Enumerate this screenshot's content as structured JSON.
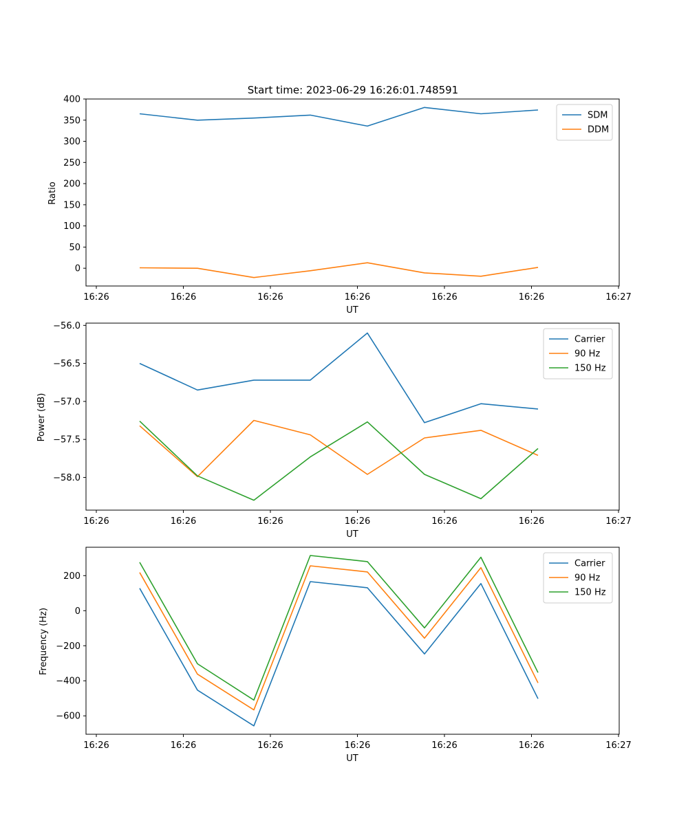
{
  "chart_data": [
    {
      "type": "line",
      "title": "Start time: 2023-06-29 16:26:01.748591",
      "xlabel": "UT",
      "ylabel": "Ratio",
      "x_tick_labels": [
        "16:26",
        "16:26",
        "16:26",
        "16:26",
        "16:26",
        "16:26",
        "16:27"
      ],
      "ylim": [
        -42,
        400
      ],
      "y_ticks": [
        0,
        50,
        100,
        150,
        200,
        250,
        300,
        350,
        400
      ],
      "legend": "top-right",
      "series": [
        {
          "name": "SDM",
          "color": "#1f77b4",
          "values": [
            365,
            350,
            355,
            362,
            336,
            380,
            365,
            374
          ]
        },
        {
          "name": "DDM",
          "color": "#ff7f0e",
          "values": [
            1,
            0,
            -22,
            -6,
            13,
            -11,
            -19,
            2
          ]
        }
      ]
    },
    {
      "type": "line",
      "title": "",
      "xlabel": "UT",
      "ylabel": "Power (dB)",
      "x_tick_labels": [
        "16:26",
        "16:26",
        "16:26",
        "16:26",
        "16:26",
        "16:26",
        "16:27"
      ],
      "ylim": [
        -58.43,
        -55.97
      ],
      "y_ticks": [
        -58.0,
        -57.5,
        -57.0,
        -56.5,
        -56.0
      ],
      "y_tick_labels": [
        "−58.0",
        "−57.5",
        "−57.0",
        "−56.5",
        "−56.0"
      ],
      "legend": "top-right",
      "series": [
        {
          "name": "Carrier",
          "color": "#1f77b4",
          "values": [
            -56.5,
            -56.85,
            -56.72,
            -56.72,
            -56.1,
            -57.28,
            -57.03,
            -57.1
          ]
        },
        {
          "name": "90 Hz",
          "color": "#ff7f0e",
          "values": [
            -57.32,
            -57.99,
            -57.25,
            -57.44,
            -57.96,
            -57.48,
            -57.38,
            -57.71
          ]
        },
        {
          "name": "150 Hz",
          "color": "#2ca02c",
          "values": [
            -57.26,
            -57.98,
            -58.3,
            -57.73,
            -57.27,
            -57.96,
            -58.28,
            -57.62
          ]
        }
      ]
    },
    {
      "type": "line",
      "title": "",
      "xlabel": "UT",
      "ylabel": "Frequency (Hz)",
      "x_tick_labels": [
        "16:26",
        "16:26",
        "16:26",
        "16:26",
        "16:26",
        "16:26",
        "16:27"
      ],
      "ylim": [
        -705,
        362
      ],
      "y_ticks": [
        -600,
        -400,
        -200,
        0,
        200
      ],
      "y_tick_labels": [
        "−600",
        "−400",
        "−200",
        "0",
        "200"
      ],
      "legend": "top-right",
      "series": [
        {
          "name": "Carrier",
          "color": "#1f77b4",
          "values": [
            128,
            -453,
            -657,
            166,
            131,
            -247,
            155,
            -502
          ]
        },
        {
          "name": "90 Hz",
          "color": "#ff7f0e",
          "values": [
            218,
            -362,
            -566,
            256,
            221,
            -157,
            246,
            -412
          ]
        },
        {
          "name": "150 Hz",
          "color": "#2ca02c",
          "values": [
            276,
            -303,
            -510,
            315,
            280,
            -98,
            305,
            -353
          ]
        }
      ]
    }
  ]
}
